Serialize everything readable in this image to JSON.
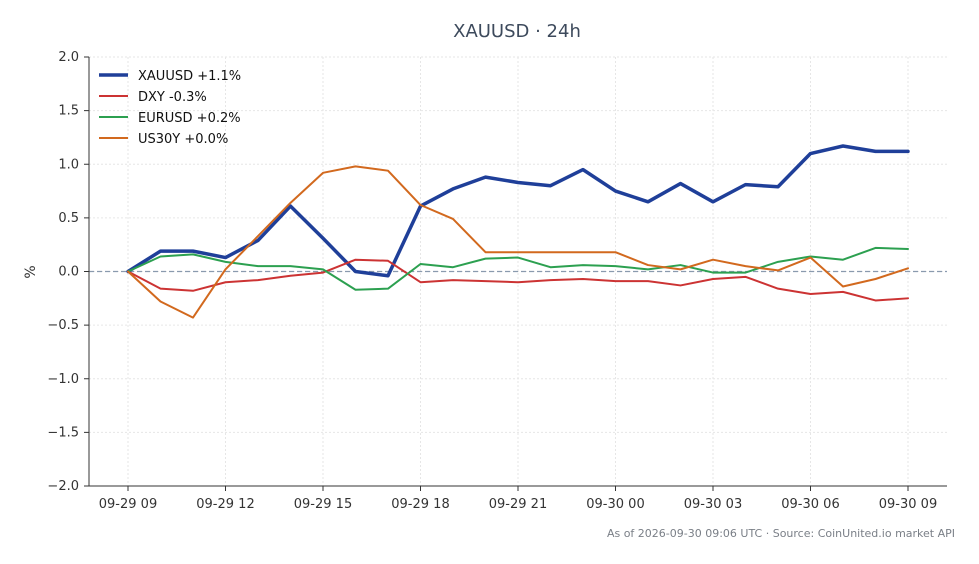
{
  "chart_data": {
    "type": "line",
    "title": "XAUUSD · 24h",
    "ylabel": "%",
    "xlabel": "",
    "ylim": [
      -2.0,
      2.0
    ],
    "yticks": [
      2.0,
      1.5,
      1.0,
      0.5,
      0.0,
      -0.5,
      -1.0,
      -1.5,
      -2.0
    ],
    "ytick_labels": [
      "2.0",
      "1.5",
      "1.0",
      "0.5",
      "0.0",
      "−0.5",
      "−1.0",
      "−1.5",
      "−2.0"
    ],
    "x_hours": [
      0,
      1,
      2,
      3,
      4,
      5,
      6,
      7,
      8,
      9,
      10,
      11,
      12,
      13,
      14,
      15,
      16,
      17,
      18,
      19,
      20,
      21,
      22,
      23,
      24
    ],
    "xlim": [
      -1.2,
      25.2
    ],
    "xticks": [
      0,
      3,
      6,
      9,
      12,
      15,
      18,
      21,
      24
    ],
    "xtick_labels": [
      "09-29 09",
      "09-29 12",
      "09-29 15",
      "09-29 18",
      "09-29 21",
      "09-30 00",
      "09-30 03",
      "09-30 06",
      "09-30 09"
    ],
    "grid": true,
    "zero_line": true,
    "legend_position": "top-left",
    "series": [
      {
        "name": "XAUUSD +1.1%",
        "color": "#1f3f99",
        "width": 3.5,
        "values": [
          0.0,
          0.19,
          0.19,
          0.13,
          0.29,
          0.61,
          0.31,
          0.0,
          -0.04,
          0.61,
          0.77,
          0.88,
          0.83,
          0.8,
          0.95,
          0.75,
          0.65,
          0.82,
          0.65,
          0.81,
          0.79,
          1.1,
          1.17,
          1.12,
          1.12
        ]
      },
      {
        "name": "DXY -0.3%",
        "color": "#cc3333",
        "width": 2,
        "values": [
          0.0,
          -0.16,
          -0.18,
          -0.1,
          -0.08,
          -0.04,
          -0.01,
          0.11,
          0.1,
          -0.1,
          -0.08,
          -0.09,
          -0.1,
          -0.08,
          -0.07,
          -0.09,
          -0.09,
          -0.13,
          -0.07,
          -0.05,
          -0.16,
          -0.21,
          -0.19,
          -0.27,
          -0.25
        ]
      },
      {
        "name": "EURUSD +0.2%",
        "color": "#2ca050",
        "width": 2,
        "values": [
          0.0,
          0.14,
          0.16,
          0.09,
          0.05,
          0.05,
          0.02,
          -0.17,
          -0.16,
          0.07,
          0.04,
          0.12,
          0.13,
          0.04,
          0.06,
          0.05,
          0.02,
          0.06,
          -0.01,
          -0.01,
          0.09,
          0.14,
          0.11,
          0.22,
          0.21
        ]
      },
      {
        "name": "US30Y +0.0%",
        "color": "#d2691e",
        "width": 2,
        "values": [
          0.0,
          -0.28,
          -0.43,
          0.02,
          0.33,
          0.64,
          0.92,
          0.98,
          0.94,
          0.62,
          0.49,
          0.18,
          0.18,
          0.18,
          0.18,
          0.18,
          0.06,
          0.02,
          0.11,
          0.05,
          0.01,
          0.13,
          -0.14,
          -0.07,
          0.03
        ]
      }
    ],
    "footer": "As of 2026-09-30 09:06 UTC · Source: CoinUnited.io market API"
  }
}
